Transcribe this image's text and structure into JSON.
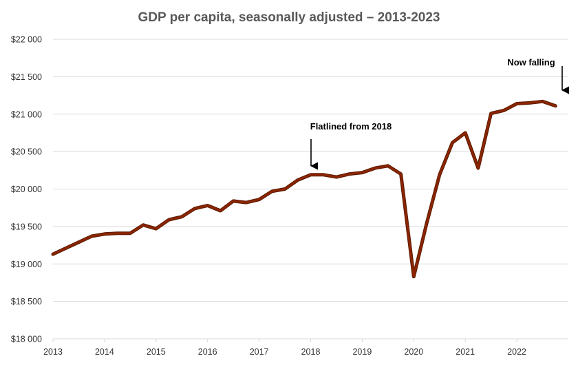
{
  "chart_data": {
    "type": "line",
    "title": "GDP per capita, seasonally adjusted –  2013-2023",
    "xlabel": "",
    "ylabel": "",
    "ylim": [
      18000,
      22000
    ],
    "xlim": [
      2013,
      2023
    ],
    "y_ticks": [
      18000,
      18500,
      19000,
      19500,
      20000,
      20500,
      21000,
      21500,
      22000
    ],
    "y_tick_labels": [
      "$18 000",
      "$18 500",
      "$19 000",
      "$19 500",
      "$20 000",
      "$20 500",
      "$21 000",
      "$21 500",
      "$22 000"
    ],
    "x_ticks": [
      2013,
      2014,
      2015,
      2016,
      2017,
      2018,
      2019,
      2020,
      2021,
      2022
    ],
    "x_tick_labels": [
      "2013",
      "2014",
      "2015",
      "2016",
      "2017",
      "2018",
      "2019",
      "2020",
      "2021",
      "2022"
    ],
    "grid": true,
    "legend": "none",
    "color": "#8B2500",
    "series": [
      {
        "x": [
          2013.0,
          2013.25,
          2013.5,
          2013.75,
          2014.0,
          2014.25,
          2014.5,
          2014.75,
          2015.0,
          2015.25,
          2015.5,
          2015.75,
          2016.0,
          2016.25,
          2016.5,
          2016.75,
          2017.0,
          2017.25,
          2017.5,
          2017.75,
          2018.0,
          2018.25,
          2018.5,
          2018.75,
          2019.0,
          2019.25,
          2019.5,
          2019.75,
          2020.0,
          2020.25,
          2020.5,
          2020.75,
          2021.0,
          2021.25,
          2021.5,
          2021.75,
          2022.0,
          2022.25,
          2022.5,
          2022.75
        ],
        "values": [
          19130,
          19210,
          19290,
          19370,
          19400,
          19410,
          19410,
          19520,
          19470,
          19590,
          19630,
          19740,
          19780,
          19710,
          19840,
          19820,
          19860,
          19970,
          20000,
          20120,
          20190,
          20190,
          20160,
          20200,
          20220,
          20280,
          20310,
          20200,
          18830,
          19540,
          20190,
          20620,
          20750,
          20280,
          21010,
          21050,
          21140,
          21150,
          21170,
          21110
        ]
      }
    ],
    "annotations": [
      {
        "text": "Flatlined from 2018",
        "x": 2017.93,
        "y": 20300,
        "arrow": "down"
      },
      {
        "text": "Now falling",
        "x": 2022.75,
        "y": 21300,
        "arrow": "down"
      }
    ]
  }
}
